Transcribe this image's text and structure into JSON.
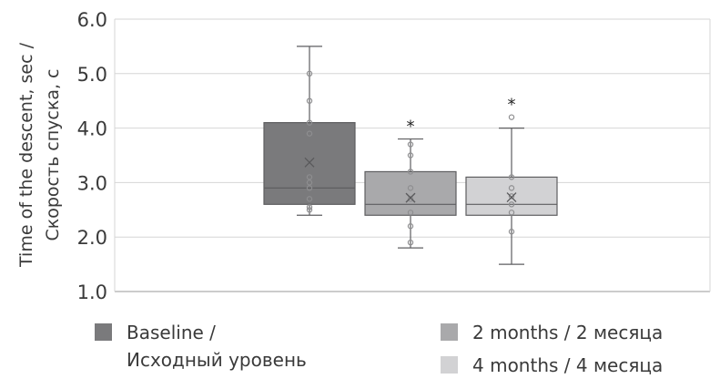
{
  "chart_data": {
    "type": "box",
    "ylabel_line1": "Time of the descent, sec /",
    "ylabel_line2": "Скорость спуска, с",
    "ylim": [
      1.0,
      6.0
    ],
    "yticks": [
      "1.0",
      "2.0",
      "3.0",
      "4.0",
      "5.0",
      "6.0"
    ],
    "grid": true,
    "series": [
      {
        "name": "Baseline / Исходный уровень",
        "legend_line1": "Baseline /",
        "legend_line2": "Исходный уровень",
        "color": "#7a7a7c",
        "min": 2.4,
        "q1": 2.6,
        "median": 2.9,
        "q3": 4.1,
        "max": 5.5,
        "mean": 3.37,
        "points": [
          2.5,
          2.55,
          2.7,
          2.9,
          3.0,
          3.1,
          3.9,
          4.1,
          4.5,
          5.0
        ],
        "outliers": [],
        "marker": ""
      },
      {
        "name": "2 months / 2 месяца",
        "legend_line1": "2 months / 2 месяца",
        "color": "#a9a9ab",
        "min": 1.8,
        "q1": 2.4,
        "median": 2.6,
        "q3": 3.2,
        "max": 3.8,
        "mean": 2.72,
        "points": [
          1.9,
          2.2,
          2.45,
          2.7,
          2.9,
          3.2,
          3.5,
          3.7
        ],
        "outliers": [],
        "marker": "*"
      },
      {
        "name": "4 months / 4 месяца",
        "legend_line1": "4 months / 4 месяца",
        "color": "#d2d2d4",
        "min": 1.5,
        "q1": 2.4,
        "median": 2.6,
        "q3": 3.1,
        "max": 4.0,
        "mean": 2.73,
        "points": [
          2.1,
          2.45,
          2.6,
          2.75,
          2.9,
          3.1
        ],
        "outliers": [
          4.2
        ],
        "marker": "*"
      }
    ]
  }
}
